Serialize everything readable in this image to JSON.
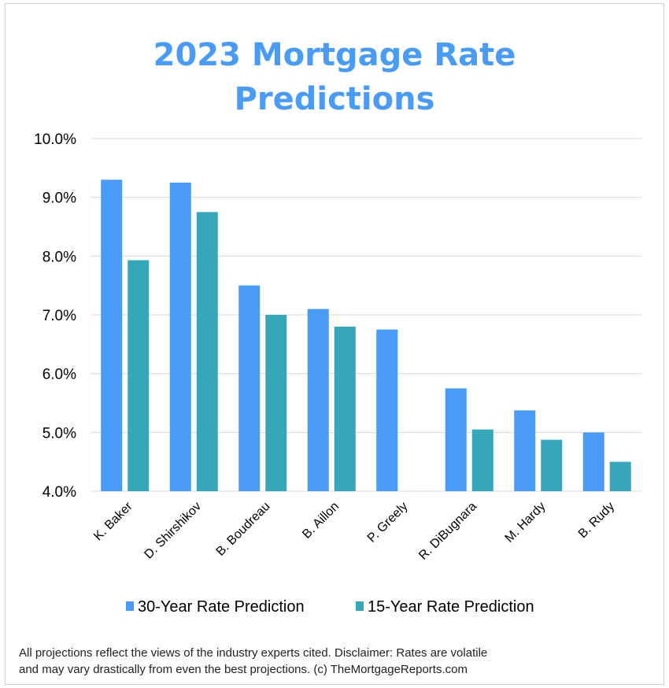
{
  "chart_data": {
    "type": "bar",
    "title": "2023 Mortgage Rate Predictions",
    "categories": [
      "K. Baker",
      "D. Shirshikov",
      "B. Boudreau",
      "B. Aillon",
      "P. Greely",
      "R. DiBugnara",
      "M. Hardy",
      "B. Rudy"
    ],
    "series": [
      {
        "name": "30-Year Rate Prediction",
        "color": "#4a9bf5",
        "values": [
          9.3,
          9.25,
          7.5,
          7.1,
          6.75,
          5.75,
          5.375,
          5.0
        ]
      },
      {
        "name": "15-Year Rate Prediction",
        "color": "#36a6b9",
        "values": [
          7.93,
          8.75,
          7.0,
          6.8,
          null,
          5.05,
          4.875,
          4.5
        ]
      }
    ],
    "ylim": [
      4.0,
      10.0
    ],
    "yticks": [
      "4.0%",
      "5.0%",
      "6.0%",
      "7.0%",
      "8.0%",
      "9.0%",
      "10.0%"
    ],
    "xlabel": "",
    "ylabel": "",
    "grid": true,
    "legend": "bottom"
  },
  "footnote_line1": "All projections reflect the views of the industry experts cited. Disclaimer: Rates are volatile",
  "footnote_line2": "and may vary drastically from even the best projections.  (c) TheMortgageReports.com"
}
